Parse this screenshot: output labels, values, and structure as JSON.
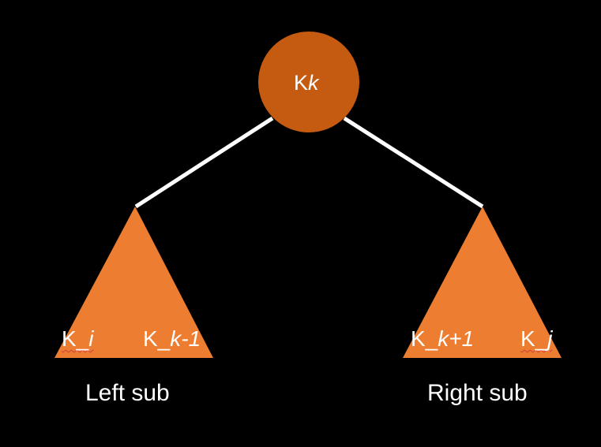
{
  "root": {
    "prefix": "K",
    "var": "k",
    "fill": "#c55a11"
  },
  "left": {
    "fill": "#ed7d31",
    "low": {
      "prefix": "K_",
      "var": "i"
    },
    "high": {
      "prefix": "K_",
      "var": "k-1"
    },
    "caption": "Left sub"
  },
  "right": {
    "fill": "#ed7d31",
    "low": {
      "prefix": "K_",
      "var": "k+1"
    },
    "high": {
      "prefix": "K_",
      "var": "j"
    },
    "caption": "Right sub"
  },
  "edge_color": "#ffffff",
  "text_color": "#ffffff"
}
